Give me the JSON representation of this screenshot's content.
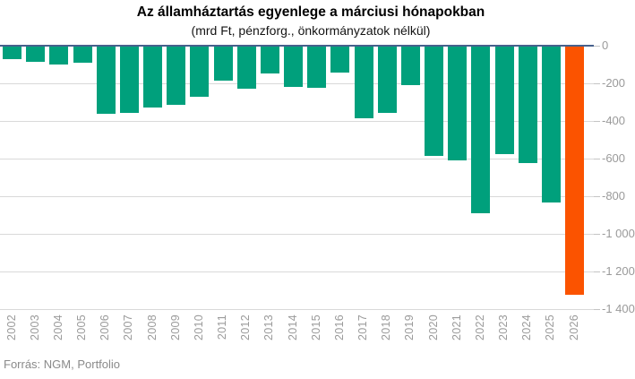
{
  "footer": {
    "source": "Forrás: NGM, Portfolio"
  },
  "chart_data": {
    "type": "bar",
    "title": "Az államháztartás egyenlege a márciusi hónapokban",
    "subtitle": "(mrd Ft, pénzforg., önkormányzatok nélkül)",
    "unit": "mrd Ft",
    "categories": [
      "2002",
      "2003",
      "2004",
      "2005",
      "2006",
      "2007",
      "2008",
      "2009",
      "2010",
      "2011",
      "2012",
      "2013",
      "2014",
      "2015",
      "2016",
      "2017",
      "2018",
      "2019",
      "2020",
      "2021",
      "2022",
      "2023",
      "2024",
      "2025",
      "2026"
    ],
    "values": [
      -65,
      -80,
      -95,
      -85,
      -355,
      -350,
      -325,
      -310,
      -265,
      -180,
      -225,
      -145,
      -215,
      -220,
      -140,
      -380,
      -350,
      -205,
      -580,
      -605,
      -885,
      -570,
      -620,
      -830,
      -1320
    ],
    "highlight_index": 24,
    "ylim": [
      -1400,
      0
    ],
    "ytick_step": 200,
    "ytick_labels": [
      "0",
      "-200",
      "-400",
      "-600",
      "-800",
      "-1 000",
      "-1 200",
      "-1 400"
    ],
    "grid": true,
    "legend": "none",
    "colors": {
      "bar": "#00a07c",
      "highlight": "#fb5300",
      "axis_line": "#46618c",
      "grid_line": "#d9d9d9",
      "tick_mark": "#c4c4c4",
      "tick_label": "#9a9a9a"
    }
  }
}
